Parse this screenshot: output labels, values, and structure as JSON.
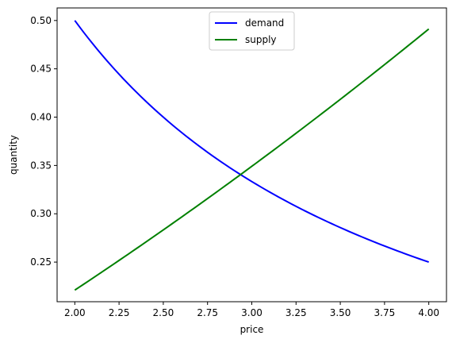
{
  "chart_data": {
    "type": "line",
    "xlabel": "price",
    "ylabel": "quantity",
    "xlim": [
      1.9,
      4.1
    ],
    "ylim": [
      0.209,
      0.513
    ],
    "xticks": [
      "2.00",
      "2.25",
      "2.50",
      "2.75",
      "3.00",
      "3.25",
      "3.50",
      "3.75",
      "4.00"
    ],
    "yticks": [
      "0.25",
      "0.30",
      "0.35",
      "0.40",
      "0.45",
      "0.50"
    ],
    "grid": false,
    "legend_position": "top-center",
    "series": [
      {
        "name": "demand",
        "color": "#0000ff",
        "x": [
          2.0,
          2.25,
          2.5,
          2.75,
          3.0,
          3.25,
          3.5,
          3.75,
          4.0
        ],
        "y": [
          0.5,
          0.444,
          0.4,
          0.364,
          0.333,
          0.308,
          0.286,
          0.267,
          0.25
        ]
      },
      {
        "name": "supply",
        "color": "#008000",
        "x": [
          2.0,
          2.25,
          2.5,
          2.75,
          3.0,
          3.25,
          3.5,
          3.75,
          4.0
        ],
        "y": [
          0.221,
          0.251,
          0.283,
          0.316,
          0.351,
          0.386,
          0.421,
          0.457,
          0.492
        ]
      }
    ]
  }
}
